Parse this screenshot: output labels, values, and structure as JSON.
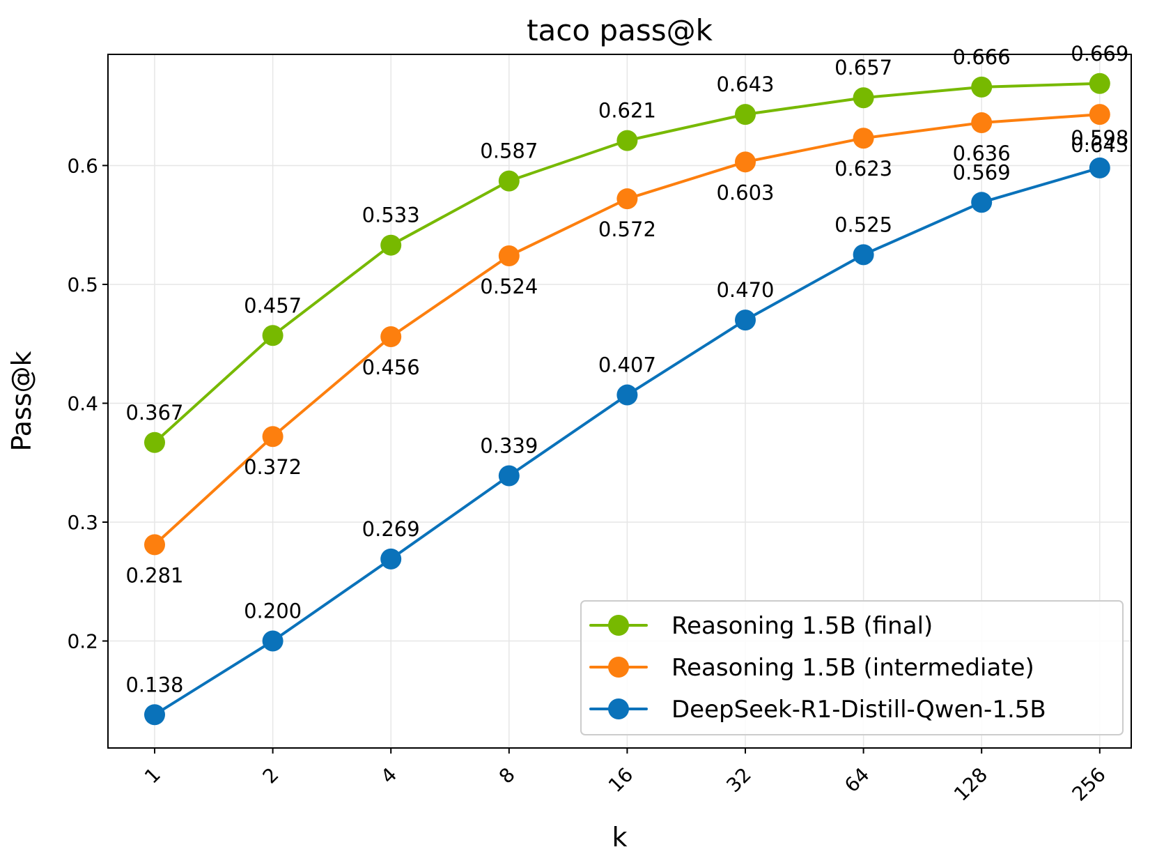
{
  "chart_data": {
    "type": "line",
    "title": "taco pass@k",
    "xlabel": "k",
    "ylabel": "Pass@k",
    "categories": [
      "1",
      "2",
      "4",
      "8",
      "16",
      "32",
      "64",
      "128",
      "256"
    ],
    "ylim": [
      0.11,
      0.6935
    ],
    "yticks": [
      0.2,
      0.3,
      0.4,
      0.5,
      0.6
    ],
    "ytick_labels": [
      "0.2",
      "0.3",
      "0.4",
      "0.5",
      "0.6"
    ],
    "grid": true,
    "legend_position": "lower-right",
    "series": [
      {
        "name": "Reasoning 1.5B (final)",
        "color": "#77b900",
        "values": [
          0.367,
          0.457,
          0.533,
          0.587,
          0.621,
          0.643,
          0.657,
          0.666,
          0.669
        ],
        "labels": [
          "0.367",
          "0.457",
          "0.533",
          "0.587",
          "0.621",
          "0.643",
          "0.657",
          "0.666",
          "0.669"
        ],
        "label_position": "above"
      },
      {
        "name": "Reasoning 1.5B (intermediate)",
        "color": "#fd7f0e",
        "values": [
          0.281,
          0.372,
          0.456,
          0.524,
          0.572,
          0.603,
          0.623,
          0.636,
          0.643
        ],
        "labels": [
          "0.281",
          "0.372",
          "0.456",
          "0.524",
          "0.572",
          "0.603",
          "0.623",
          "0.636",
          "0.643"
        ],
        "label_position": "below"
      },
      {
        "name": "DeepSeek-R1-Distill-Qwen-1.5B",
        "color": "#0a72ba",
        "values": [
          0.138,
          0.2,
          0.269,
          0.339,
          0.407,
          0.47,
          0.525,
          0.569,
          0.598
        ],
        "labels": [
          "0.138",
          "0.200",
          "0.269",
          "0.339",
          "0.407",
          "0.470",
          "0.525",
          "0.569",
          "0.598"
        ],
        "label_position": "above"
      }
    ]
  }
}
